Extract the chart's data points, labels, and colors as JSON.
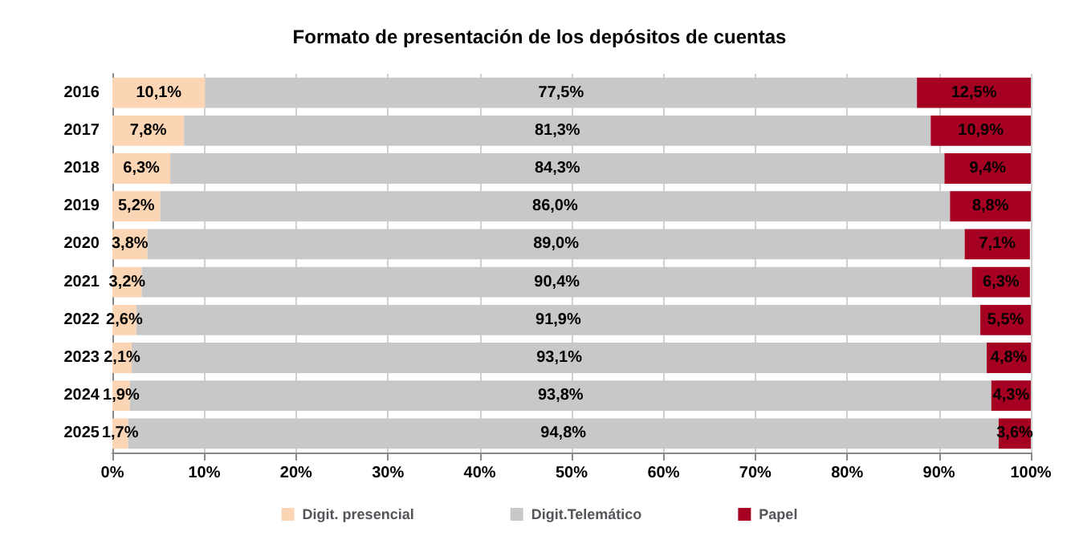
{
  "chart_data": {
    "type": "bar",
    "orientation": "horizontal",
    "stacked": true,
    "title": "Formato de presentación de los depósitos de cuentas",
    "categories": [
      "2016",
      "2017",
      "2018",
      "2019",
      "2020",
      "2021",
      "2022",
      "2023",
      "2024",
      "2025"
    ],
    "series": [
      {
        "name": "Digit. presencial",
        "color": "#fcd5b4",
        "values": [
          10.1,
          7.8,
          6.3,
          5.2,
          3.8,
          3.2,
          2.6,
          2.1,
          1.9,
          1.7
        ],
        "value_labels": [
          "10,1%",
          "7,8%",
          "6,3%",
          "5,2%",
          "3,8%",
          "3,2%",
          "2,6%",
          "2,1%",
          "1,9%",
          "1,7%"
        ]
      },
      {
        "name": "Digit.Telemático",
        "color": "#c8c8c8",
        "values": [
          77.5,
          81.3,
          84.3,
          86.0,
          89.0,
          90.4,
          91.9,
          93.1,
          93.8,
          94.8
        ],
        "value_labels": [
          "77,5%",
          "81,3%",
          "84,3%",
          "86,0%",
          "89,0%",
          "90,4%",
          "91,9%",
          "93,1%",
          "93,8%",
          "94,8%"
        ]
      },
      {
        "name": "Papel",
        "color": "#a50021",
        "values": [
          12.5,
          10.9,
          9.4,
          8.8,
          7.1,
          6.3,
          5.5,
          4.8,
          4.3,
          3.6
        ],
        "value_labels": [
          "12,5%",
          "10,9%",
          "9,4%",
          "8,8%",
          "7,1%",
          "6,3%",
          "5,5%",
          "4,8%",
          "4,3%",
          "3,6%"
        ]
      }
    ],
    "xlim": [
      0,
      100
    ],
    "xticks": [
      {
        "value": 0,
        "label": "0%"
      },
      {
        "value": 10,
        "label": "10%"
      },
      {
        "value": 20,
        "label": "20%"
      },
      {
        "value": 30,
        "label": "30%"
      },
      {
        "value": 40,
        "label": "40%"
      },
      {
        "value": 50,
        "label": "50%"
      },
      {
        "value": 60,
        "label": "60%"
      },
      {
        "value": 70,
        "label": "70%"
      },
      {
        "value": 80,
        "label": "80%"
      },
      {
        "value": 90,
        "label": "90%"
      },
      {
        "value": 100,
        "label": "100%"
      }
    ],
    "grid": "x",
    "legend": "bottom"
  }
}
